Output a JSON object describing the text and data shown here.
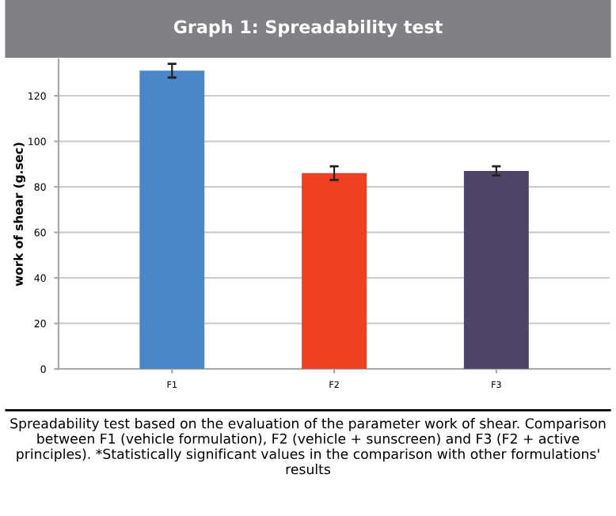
{
  "chart_data": {
    "type": "bar",
    "title": "Graph 1: Spreadability test",
    "categories": [
      "F1",
      "F2",
      "F3"
    ],
    "values": [
      131,
      86,
      87
    ],
    "errors": [
      3,
      3,
      2
    ],
    "colors": [
      "#4a86c8",
      "#ee4123",
      "#4d4468"
    ],
    "ylabel": "work of shear (g.sec)",
    "ylim": [
      0,
      136
    ],
    "yticks": [
      0,
      20,
      40,
      60,
      80,
      100,
      120
    ],
    "grid": "y",
    "annotations": [
      "Spreadability test based on the evaluation of the parameter work of shear. Comparison between F1 (vehicle formulation), F2 (vehicle + sunscreen) and F3 (F2 + active principles). *Statistically significant values in the comparison with other formulations' results"
    ]
  }
}
